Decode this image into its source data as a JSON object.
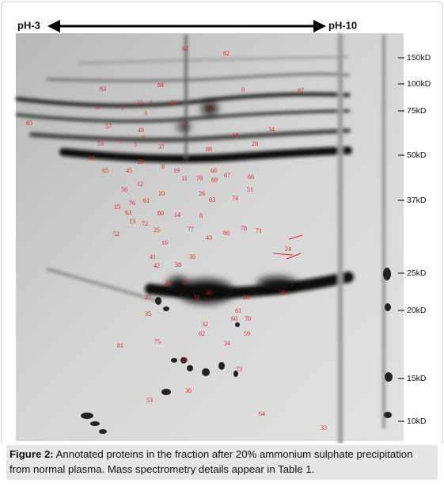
{
  "figure": {
    "ph_left": "pH-3",
    "ph_right": "pH-10",
    "markers": [
      "150kD",
      "100kD",
      "75kD",
      "50kD",
      "37kD",
      "25kD",
      "20kD",
      "15kD",
      "10kD"
    ],
    "spot_labels": [
      "62",
      "82",
      "83",
      "84",
      "87",
      "9",
      "8",
      "7",
      "21",
      "6",
      "46",
      "22",
      "3",
      "85",
      "57",
      "1",
      "49",
      "34",
      "44",
      "2",
      "4",
      "5",
      "53",
      "37",
      "28",
      "88",
      "58",
      "29",
      "8",
      "19",
      "65",
      "45",
      "60",
      "66",
      "67",
      "79",
      "11",
      "69",
      "12",
      "56",
      "51",
      "26",
      "10",
      "74",
      "63",
      "61",
      "76",
      "15",
      "63",
      "80",
      "14",
      "8",
      "13",
      "72",
      "77",
      "25",
      "78",
      "71",
      "86",
      "52",
      "43",
      "16",
      "24",
      "41",
      "39",
      "42",
      "38",
      "40",
      "37",
      "36",
      "29",
      "27",
      "31",
      "28",
      "61",
      "35",
      "60",
      "70",
      "32",
      "62",
      "59",
      "34",
      "75",
      "81",
      "20",
      "73",
      "30",
      "53",
      "64",
      "33"
    ],
    "caption_label": "Figure 2:",
    "caption_text": "Annotated proteins in the fraction after 20% ammonium sulphate precipitation from normal plasma.  Mass spectrometry details appear in Table 1."
  }
}
